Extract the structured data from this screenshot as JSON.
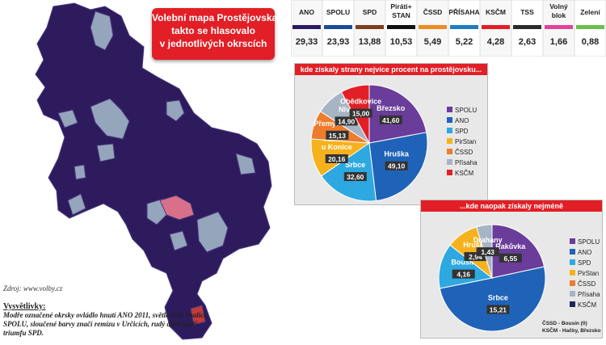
{
  "map": {
    "title_line1": "Volební mapa Prostějovska:",
    "title_line2": "takto se hlasovalo",
    "title_line3": "v jednotlivých okrscích",
    "source": "Zdroj: www.volby.cz",
    "legend_title": "Vysvětlivky:",
    "legend_text": "Modře označené okrsky ovládlo hnutí ANO 2011, světle šedé koalice SPOLU, sloučené barvy značí remízu v Určicích, rudý dílek patří triumfu SPD."
  },
  "results_table": {
    "parties": [
      {
        "name": "ANO",
        "value": "29,33",
        "color": "#2c1a66"
      },
      {
        "name": "SPOLU",
        "value": "23,93",
        "color": "#1a4a9c"
      },
      {
        "name": "SPD",
        "value": "13,88",
        "color": "#7b3f1e"
      },
      {
        "name": "Piráti+ STAN",
        "value": "10,53",
        "color": "#111111"
      },
      {
        "name": "ČSSD",
        "value": "5,49",
        "color": "#f08a24"
      },
      {
        "name": "PŘÍSAHA",
        "value": "5,22",
        "color": "#1f7ec2"
      },
      {
        "name": "KSČM",
        "value": "4,28",
        "color": "#e21f26"
      },
      {
        "name": "TSS",
        "value": "2,63",
        "color": "#2b2b2b"
      },
      {
        "name": "Volný blok",
        "value": "1,66",
        "color": "#e0439a"
      },
      {
        "name": "Zelení",
        "value": "0,88",
        "color": "#6abf4b"
      }
    ]
  },
  "chart_data": [
    {
      "type": "pie",
      "title": "kde získaly strany nejvíce procent na prostějovsku...",
      "slices": [
        {
          "label": "Březsko",
          "value": 41.6,
          "value_text": "41,60",
          "party": "SPOLU",
          "color": "#6a3d9a"
        },
        {
          "label": "Hruška",
          "value": 49.1,
          "value_text": "49,10",
          "party": "ANO",
          "color": "#1f63b8"
        },
        {
          "label": "Srbce",
          "value": 32.6,
          "value_text": "32,60",
          "party": "SPD",
          "color": "#2ea8e0"
        },
        {
          "label": "Raková u Konice",
          "value": 20.16,
          "value_text": "20,16",
          "party": "PirStan",
          "color": "#f5b21c"
        },
        {
          "label": "Přemyslovice",
          "value": 15.13,
          "value_text": "15,13",
          "party": "ČSSD",
          "color": "#ee7c2c"
        },
        {
          "label": "Niva",
          "value": 14.9,
          "value_text": "14,90",
          "party": "Přísaha",
          "color": "#a7b4c4"
        },
        {
          "label": "Obědkovice",
          "value": 15.0,
          "value_text": "15,00",
          "party": "KSČM",
          "color": "#e21f26"
        }
      ],
      "legend": [
        "SPOLU",
        "ANO",
        "SPD",
        "PirStan",
        "ČSSD",
        "Přísaha",
        "KSČM"
      ],
      "legend_colors": [
        "#6a3d9a",
        "#1f63b8",
        "#2ea8e0",
        "#f5b21c",
        "#ee7c2c",
        "#a7b4c4",
        "#e21f26"
      ],
      "legend_placement": "right"
    },
    {
      "type": "pie",
      "title": "...kde naopak získaly nejméně",
      "slices": [
        {
          "label": "Rakůvka",
          "value": 6.55,
          "value_text": "6,55",
          "party": "SPOLU",
          "color": "#6a3d9a"
        },
        {
          "label": "Srbce",
          "value": 15.21,
          "value_text": "15,21",
          "party": "ANO",
          "color": "#1f63b8"
        },
        {
          "label": "Bousín",
          "value": 4.16,
          "value_text": "4,16",
          "party": "SPD",
          "color": "#2ea8e0"
        },
        {
          "label": "Hruška",
          "value": 2.94,
          "value_text": "2,94",
          "party": "PirStan",
          "color": "#f5b21c"
        },
        {
          "label": "Drahany",
          "value": 1.43,
          "value_text": "1,43",
          "party": "Přísaha",
          "color": "#a7b4c4"
        }
      ],
      "legend": [
        "SPOLU",
        "ANO",
        "SPD",
        "PirStan",
        "ČSSD",
        "Přísaha",
        "KSČM"
      ],
      "legend_colors": [
        "#6a3d9a",
        "#1f63b8",
        "#2ea8e0",
        "#f5b21c",
        "#ee7c2c",
        "#a7b4c4",
        "#1a2a55"
      ],
      "legend_placement": "right",
      "footnote1": "ČSSD - Bousín (0)",
      "footnote2": "KSČM - Hačky, Březsko (0)"
    }
  ]
}
